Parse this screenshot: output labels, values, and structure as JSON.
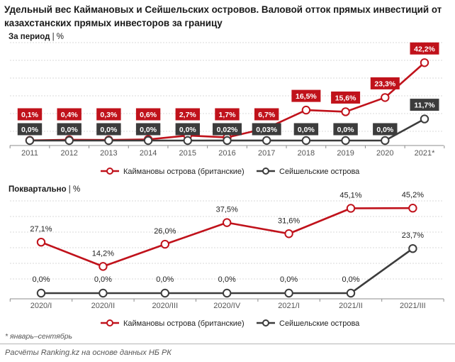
{
  "title": "Удельный вес Каймановых и Сейшельских островов. Валовой отток прямых инвестиций от казахстанских прямых инвесторов за границу",
  "chart_data": [
    {
      "type": "line",
      "label": "За период",
      "unit": "%",
      "categories": [
        "2011",
        "2012",
        "2013",
        "2014",
        "2015",
        "2016",
        "2017",
        "2018",
        "2019",
        "2020",
        "2021*"
      ],
      "ylim": [
        0,
        50
      ],
      "grid": true,
      "legend_position": "bottom",
      "series": [
        {
          "name": "Каймановы острова (британские)",
          "values": [
            0.1,
            0.4,
            0.3,
            0.6,
            2.7,
            1.7,
            6.7,
            16.5,
            15.6,
            23.3,
            42.2
          ],
          "labels": [
            "0,1%",
            "0,4%",
            "0,3%",
            "0,6%",
            "2,7%",
            "1,7%",
            "6,7%",
            "16,5%",
            "15,6%",
            "23,3%",
            "42,2%"
          ]
        },
        {
          "name": "Сейшельские острова",
          "values": [
            0,
            0,
            0,
            0,
            0,
            0.02,
            0.03,
            0,
            0,
            0,
            11.7
          ],
          "labels": [
            "0,0%",
            "0,0%",
            "0,0%",
            "0,0%",
            "0,0%",
            "0,02%",
            "0,03%",
            "0,0%",
            "0,0%",
            "0,0%",
            "11,7%"
          ]
        }
      ]
    },
    {
      "type": "line",
      "label": "Поквартально",
      "unit": "%",
      "categories": [
        "2020/I",
        "2020/II",
        "2020/III",
        "2020/IV",
        "2021/I",
        "2021/II",
        "2021/III"
      ],
      "ylim": [
        0,
        50
      ],
      "grid": true,
      "legend_position": "bottom",
      "series": [
        {
          "name": "Каймановы острова (британские)",
          "values": [
            27.1,
            14.2,
            26.0,
            37.5,
            31.6,
            45.1,
            45.2
          ],
          "labels": [
            "27,1%",
            "14,2%",
            "26,0%",
            "37,5%",
            "31,6%",
            "45,1%",
            "45,2%"
          ]
        },
        {
          "name": "Сейшельские острова",
          "values": [
            0,
            0,
            0,
            0,
            0,
            0,
            23.7
          ],
          "labels": [
            "0,0%",
            "0,0%",
            "0,0%",
            "0,0%",
            "0,0%",
            "0,0%",
            "23,7%"
          ]
        }
      ]
    }
  ],
  "colors": {
    "cayman": "#c0121b",
    "seychelles": "#3c3c3c",
    "grid": "#d9d9d9",
    "axis": "#8c8c8c"
  },
  "footnote": "* январь–сентябрь",
  "source": "Расчёты Ranking.kz на основе данных НБ РК"
}
